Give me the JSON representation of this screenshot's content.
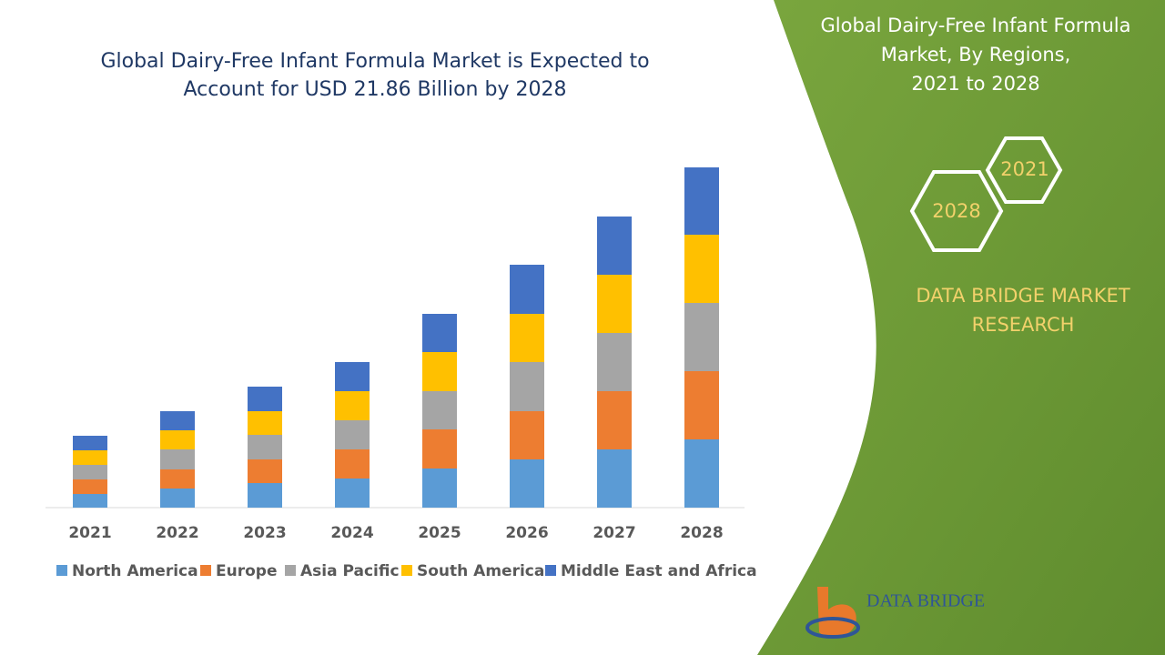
{
  "chart_data": {
    "type": "bar",
    "stacked": true,
    "title": [
      "Global Dairy-Free Infant Formula Market is Expected to",
      "Account for USD 21.86 Billion by 2028"
    ],
    "categories": [
      "2021",
      "2022",
      "2023",
      "2024",
      "2025",
      "2026",
      "2027",
      "2028"
    ],
    "series": [
      {
        "name": "North America",
        "color": "#5b9bd5",
        "values": [
          15,
          21,
          27,
          32,
          43,
          53,
          64,
          75
        ]
      },
      {
        "name": "Europe",
        "color": "#ed7d31",
        "values": [
          16,
          21,
          26,
          32,
          43,
          53,
          64,
          75
        ]
      },
      {
        "name": "Asia Pacific",
        "color": "#a5a5a5",
        "values": [
          16,
          22,
          27,
          32,
          42,
          54,
          64,
          75
        ]
      },
      {
        "name": "South America",
        "color": "#ffc000",
        "values": [
          16,
          21,
          26,
          32,
          43,
          53,
          64,
          75
        ]
      },
      {
        "name": "Middle East and Africa",
        "color": "#4472c4",
        "values": [
          16,
          21,
          27,
          32,
          42,
          54,
          64,
          74
        ]
      }
    ],
    "legend": "bottom"
  },
  "panel": {
    "title": [
      "Global Dairy-Free Infant Formula",
      "Market, By Regions,",
      "2021 to 2028"
    ],
    "hex_start": "2021",
    "hex_end": "2028",
    "brand": [
      "DATA BRIDGE MARKET",
      "RESEARCH"
    ],
    "logo_text": "DATA BRIDGE"
  }
}
